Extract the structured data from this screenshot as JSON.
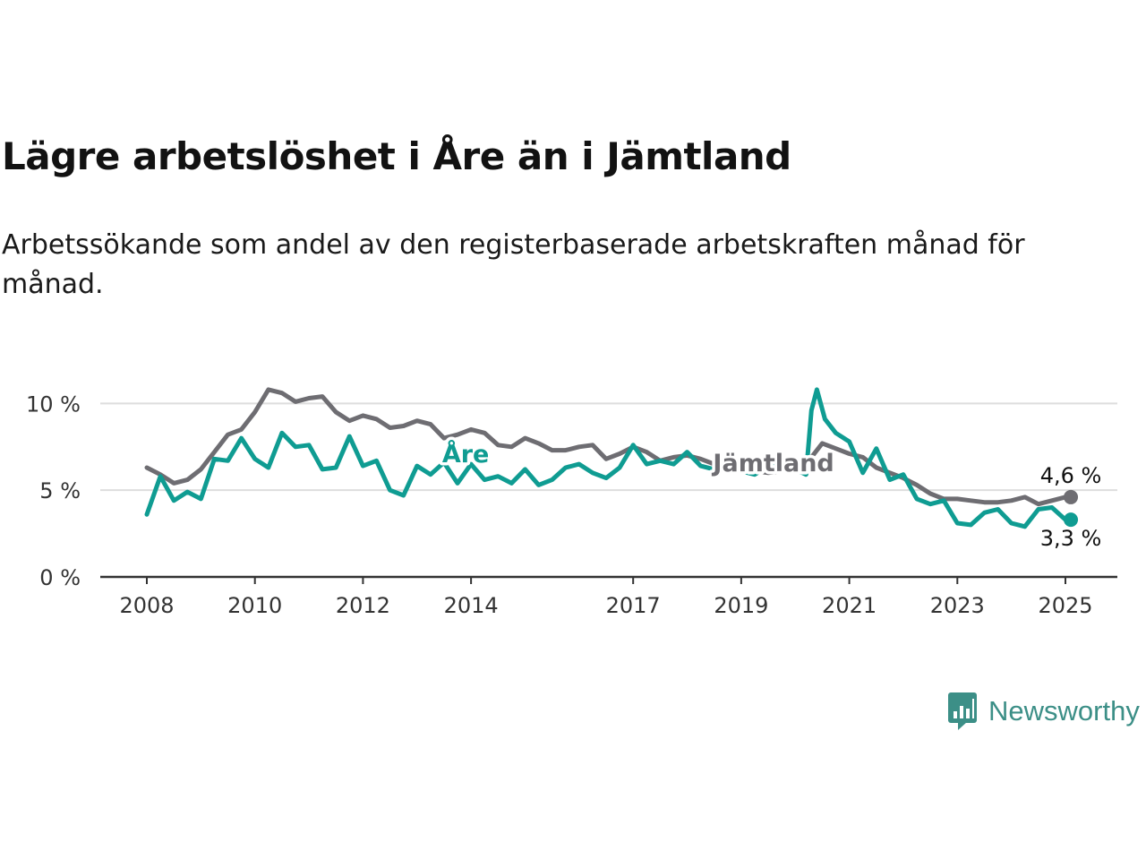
{
  "title": "Lägre arbetslöshet i Åre än i Jämtland",
  "subtitle": "Arbetssökande som andel av den registerbaserade arbetskraften månad för månad.",
  "brand": "Newsworthy",
  "colors": {
    "are": "#0f9c92",
    "jamtland": "#6e6d72",
    "grid": "#dddddd",
    "axis": "#333333",
    "brand": "#3c8f87"
  },
  "chart_data": {
    "type": "line",
    "title": "Lägre arbetslöshet i Åre än i Jämtland",
    "subtitle": "Arbetssökande som andel av den registerbaserade arbetskraften månad för månad.",
    "xlabel": "",
    "ylabel": "",
    "xlim": [
      2008,
      2025.9
    ],
    "ylim": [
      0,
      11
    ],
    "x_ticks": [
      {
        "value": 2008,
        "label": "2008"
      },
      {
        "value": 2010,
        "label": "2010"
      },
      {
        "value": 2012,
        "label": "2012"
      },
      {
        "value": 2014,
        "label": "2014"
      },
      {
        "value": 2017,
        "label": "2017"
      },
      {
        "value": 2019,
        "label": "2019"
      },
      {
        "value": 2021,
        "label": "2021"
      },
      {
        "value": 2023,
        "label": "2023"
      },
      {
        "value": 2025,
        "label": "2025"
      }
    ],
    "y_ticks": [
      {
        "value": 0,
        "label": "0 %"
      },
      {
        "value": 5,
        "label": "5 %"
      },
      {
        "value": 10,
        "label": "10 %"
      }
    ],
    "grid": true,
    "legend": "inline labels",
    "series": [
      {
        "name": "Jämtland",
        "color": "#6e6d72",
        "label_at": [
          2019.6,
          6.1
        ],
        "end_label": "4,6 %",
        "points": [
          [
            2008.0,
            6.3
          ],
          [
            2008.25,
            5.9
          ],
          [
            2008.5,
            5.4
          ],
          [
            2008.75,
            5.6
          ],
          [
            2009.0,
            6.2
          ],
          [
            2009.25,
            7.2
          ],
          [
            2009.5,
            8.2
          ],
          [
            2009.75,
            8.5
          ],
          [
            2010.0,
            9.5
          ],
          [
            2010.25,
            10.8
          ],
          [
            2010.5,
            10.6
          ],
          [
            2010.75,
            10.1
          ],
          [
            2011.0,
            10.3
          ],
          [
            2011.25,
            10.4
          ],
          [
            2011.5,
            9.5
          ],
          [
            2011.75,
            9.0
          ],
          [
            2012.0,
            9.3
          ],
          [
            2012.25,
            9.1
          ],
          [
            2012.5,
            8.6
          ],
          [
            2012.75,
            8.7
          ],
          [
            2013.0,
            9.0
          ],
          [
            2013.25,
            8.8
          ],
          [
            2013.5,
            8.0
          ],
          [
            2013.75,
            8.2
          ],
          [
            2014.0,
            8.5
          ],
          [
            2014.25,
            8.3
          ],
          [
            2014.5,
            7.6
          ],
          [
            2014.75,
            7.5
          ],
          [
            2015.0,
            8.0
          ],
          [
            2015.25,
            7.7
          ],
          [
            2015.5,
            7.3
          ],
          [
            2015.75,
            7.3
          ],
          [
            2016.0,
            7.5
          ],
          [
            2016.25,
            7.6
          ],
          [
            2016.5,
            6.8
          ],
          [
            2016.75,
            7.1
          ],
          [
            2017.0,
            7.5
          ],
          [
            2017.25,
            7.2
          ],
          [
            2017.5,
            6.7
          ],
          [
            2017.75,
            6.9
          ],
          [
            2018.0,
            7.0
          ],
          [
            2018.25,
            6.8
          ],
          [
            2018.5,
            6.5
          ],
          [
            2018.75,
            6.4
          ],
          [
            2019.0,
            6.4
          ],
          [
            2019.25,
            6.1
          ],
          [
            2019.5,
            6.0
          ],
          [
            2019.75,
            6.1
          ],
          [
            2020.0,
            6.3
          ],
          [
            2020.25,
            6.7
          ],
          [
            2020.5,
            7.7
          ],
          [
            2020.75,
            7.4
          ],
          [
            2021.0,
            7.1
          ],
          [
            2021.25,
            6.9
          ],
          [
            2021.5,
            6.3
          ],
          [
            2021.75,
            6.0
          ],
          [
            2022.0,
            5.7
          ],
          [
            2022.25,
            5.3
          ],
          [
            2022.5,
            4.8
          ],
          [
            2022.75,
            4.5
          ],
          [
            2023.0,
            4.5
          ],
          [
            2023.25,
            4.4
          ],
          [
            2023.5,
            4.3
          ],
          [
            2023.75,
            4.3
          ],
          [
            2024.0,
            4.4
          ],
          [
            2024.25,
            4.6
          ],
          [
            2024.5,
            4.2
          ],
          [
            2024.75,
            4.4
          ],
          [
            2025.0,
            4.6
          ],
          [
            2025.1,
            4.6
          ]
        ]
      },
      {
        "name": "Åre",
        "color": "#0f9c92",
        "label_at": [
          2013.9,
          6.6
        ],
        "end_label": "3,3 %",
        "points": [
          [
            2008.0,
            3.6
          ],
          [
            2008.25,
            5.8
          ],
          [
            2008.5,
            4.4
          ],
          [
            2008.75,
            4.9
          ],
          [
            2009.0,
            4.5
          ],
          [
            2009.25,
            6.8
          ],
          [
            2009.5,
            6.7
          ],
          [
            2009.75,
            8.0
          ],
          [
            2010.0,
            6.8
          ],
          [
            2010.25,
            6.3
          ],
          [
            2010.5,
            8.3
          ],
          [
            2010.75,
            7.5
          ],
          [
            2011.0,
            7.6
          ],
          [
            2011.25,
            6.2
          ],
          [
            2011.5,
            6.3
          ],
          [
            2011.75,
            8.1
          ],
          [
            2012.0,
            6.4
          ],
          [
            2012.25,
            6.7
          ],
          [
            2012.5,
            5.0
          ],
          [
            2012.75,
            4.7
          ],
          [
            2013.0,
            6.4
          ],
          [
            2013.25,
            5.9
          ],
          [
            2013.5,
            6.6
          ],
          [
            2013.75,
            5.4
          ],
          [
            2014.0,
            6.5
          ],
          [
            2014.25,
            5.6
          ],
          [
            2014.5,
            5.8
          ],
          [
            2014.75,
            5.4
          ],
          [
            2015.0,
            6.2
          ],
          [
            2015.25,
            5.3
          ],
          [
            2015.5,
            5.6
          ],
          [
            2015.75,
            6.3
          ],
          [
            2016.0,
            6.5
          ],
          [
            2016.25,
            6.0
          ],
          [
            2016.5,
            5.7
          ],
          [
            2016.75,
            6.3
          ],
          [
            2017.0,
            7.6
          ],
          [
            2017.25,
            6.5
          ],
          [
            2017.5,
            6.7
          ],
          [
            2017.75,
            6.5
          ],
          [
            2018.0,
            7.2
          ],
          [
            2018.25,
            6.4
          ],
          [
            2018.5,
            6.2
          ],
          [
            2018.75,
            6.9
          ],
          [
            2019.0,
            6.1
          ],
          [
            2019.25,
            5.9
          ],
          [
            2019.5,
            6.4
          ],
          [
            2019.75,
            6.6
          ],
          [
            2020.0,
            6.2
          ],
          [
            2020.2,
            5.9
          ],
          [
            2020.3,
            9.6
          ],
          [
            2020.4,
            10.8
          ],
          [
            2020.55,
            9.1
          ],
          [
            2020.75,
            8.3
          ],
          [
            2021.0,
            7.8
          ],
          [
            2021.25,
            6.0
          ],
          [
            2021.5,
            7.4
          ],
          [
            2021.75,
            5.6
          ],
          [
            2022.0,
            5.9
          ],
          [
            2022.25,
            4.5
          ],
          [
            2022.5,
            4.2
          ],
          [
            2022.75,
            4.4
          ],
          [
            2023.0,
            3.1
          ],
          [
            2023.25,
            3.0
          ],
          [
            2023.5,
            3.7
          ],
          [
            2023.75,
            3.9
          ],
          [
            2024.0,
            3.1
          ],
          [
            2024.25,
            2.9
          ],
          [
            2024.5,
            3.9
          ],
          [
            2024.75,
            4.0
          ],
          [
            2025.0,
            3.3
          ],
          [
            2025.1,
            3.3
          ]
        ]
      }
    ]
  }
}
